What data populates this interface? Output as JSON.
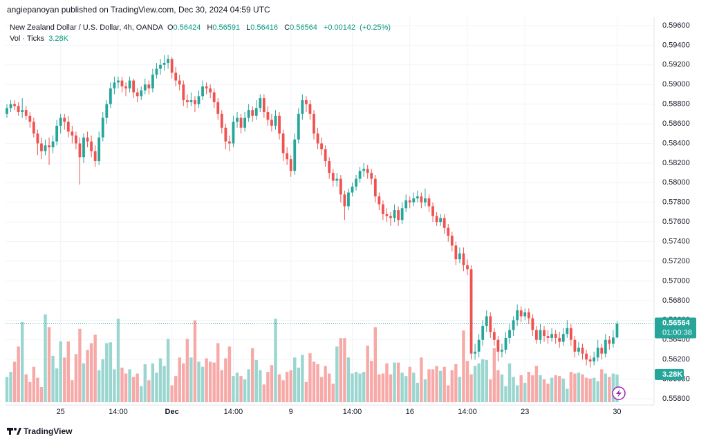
{
  "header": "angiepanoyan published on TradingView.com, Dec 30, 2024 04:59 UTC",
  "footer": "TradingView",
  "chart_data": {
    "type": "candlestick",
    "title": "New Zealand Dollar / U.S. Dollar, 4h, OANDA",
    "legend": {
      "o": "O",
      "h": "H",
      "l": "L",
      "c": "C",
      "change": "+0.00142",
      "change_pct": "(+0.25%)",
      "volume_title": "Vol · Ticks"
    },
    "volume_label": "3.28K",
    "countdown": "01:00:38",
    "up_color": "#26a69a",
    "down_color": "#ef5350",
    "vol_up_color": "#9ad6cf",
    "vol_down_color": "#f7a9a7",
    "grid": true,
    "ylim": [
      0.55765,
      0.59684
    ],
    "yticks": [
      {
        "value": 0.558,
        "label": "0.55800"
      },
      {
        "value": 0.56,
        "label": "0.56000"
      },
      {
        "value": 0.562,
        "label": "0.56200"
      },
      {
        "value": 0.564,
        "label": "0.56400"
      },
      {
        "value": 0.566,
        "label": "0.56600"
      },
      {
        "value": 0.568,
        "label": "0.56800"
      },
      {
        "value": 0.57,
        "label": "0.57000"
      },
      {
        "value": 0.572,
        "label": "0.57200"
      },
      {
        "value": 0.574,
        "label": "0.57400"
      },
      {
        "value": 0.576,
        "label": "0.57600"
      },
      {
        "value": 0.578,
        "label": "0.57800"
      },
      {
        "value": 0.58,
        "label": "0.58000"
      },
      {
        "value": 0.582,
        "label": "0.58200"
      },
      {
        "value": 0.584,
        "label": "0.58400"
      },
      {
        "value": 0.586,
        "label": "0.58600"
      },
      {
        "value": 0.588,
        "label": "0.58800"
      },
      {
        "value": 0.59,
        "label": "0.59000"
      },
      {
        "value": 0.592,
        "label": "0.59200"
      },
      {
        "value": 0.594,
        "label": "0.59400"
      },
      {
        "value": 0.596,
        "label": "0.59600"
      }
    ],
    "vol_ylim": [
      0,
      14
    ],
    "categories": [
      null,
      null,
      null,
      null,
      null,
      null,
      null,
      null,
      null,
      null,
      null,
      null,
      null,
      null,
      "25",
      null,
      null,
      null,
      null,
      null,
      null,
      null,
      null,
      null,
      null,
      null,
      null,
      null,
      null,
      "14:00",
      null,
      null,
      null,
      null,
      null,
      null,
      null,
      null,
      null,
      null,
      null,
      null,
      null,
      "Dec",
      null,
      null,
      null,
      null,
      null,
      null,
      null,
      null,
      null,
      null,
      null,
      null,
      null,
      null,
      null,
      "14:00",
      null,
      null,
      null,
      null,
      null,
      null,
      null,
      null,
      null,
      null,
      null,
      null,
      null,
      null,
      "9",
      null,
      null,
      null,
      null,
      null,
      null,
      null,
      null,
      null,
      null,
      null,
      null,
      null,
      null,
      null,
      "14:00",
      null,
      null,
      null,
      null,
      null,
      null,
      null,
      null,
      null,
      null,
      null,
      null,
      null,
      null,
      "16",
      null,
      null,
      null,
      null,
      null,
      null,
      null,
      null,
      null,
      null,
      null,
      null,
      null,
      null,
      "14:00",
      null,
      null,
      null,
      null,
      null,
      null,
      null,
      null,
      null,
      null,
      null,
      null,
      null,
      null,
      "23",
      null,
      null,
      null,
      null,
      null,
      null,
      null,
      null,
      null,
      null,
      null,
      null,
      null,
      null,
      null,
      null,
      null,
      null,
      null,
      null,
      null,
      null,
      null,
      "30"
    ],
    "ohlc": [
      [
        0.587,
        0.588,
        0.5866,
        0.5876
      ],
      [
        0.5876,
        0.5884,
        0.5872,
        0.588
      ],
      [
        0.588,
        0.5884,
        0.5874,
        0.5878
      ],
      [
        0.5878,
        0.5882,
        0.5868,
        0.5872
      ],
      [
        0.5872,
        0.5886,
        0.5866,
        0.5874
      ],
      [
        0.5874,
        0.5878,
        0.5864,
        0.5868
      ],
      [
        0.5868,
        0.5872,
        0.5856,
        0.5862
      ],
      [
        0.5862,
        0.5866,
        0.5846,
        0.585
      ],
      [
        0.585,
        0.5854,
        0.5828,
        0.584
      ],
      [
        0.584,
        0.5846,
        0.5824,
        0.5832
      ],
      [
        0.5832,
        0.5844,
        0.5828,
        0.5838
      ],
      [
        0.5838,
        0.5846,
        0.5818,
        0.5836
      ],
      [
        0.5836,
        0.5848,
        0.583,
        0.5842
      ],
      [
        0.5842,
        0.5864,
        0.5838,
        0.5858
      ],
      [
        0.5858,
        0.587,
        0.585,
        0.5866
      ],
      [
        0.5866,
        0.587,
        0.5854,
        0.5862
      ],
      [
        0.5862,
        0.5868,
        0.5846,
        0.5852
      ],
      [
        0.5852,
        0.5858,
        0.584,
        0.5848
      ],
      [
        0.5848,
        0.5852,
        0.5834,
        0.584
      ],
      [
        0.584,
        0.5846,
        0.5798,
        0.5826
      ],
      [
        0.5826,
        0.585,
        0.582,
        0.5846
      ],
      [
        0.5846,
        0.5852,
        0.5836,
        0.5842
      ],
      [
        0.5842,
        0.5848,
        0.5826,
        0.5832
      ],
      [
        0.5832,
        0.5838,
        0.5816,
        0.5822
      ],
      [
        0.5822,
        0.5852,
        0.5818,
        0.5846
      ],
      [
        0.5846,
        0.5872,
        0.5842,
        0.5866
      ],
      [
        0.5866,
        0.5884,
        0.586,
        0.588
      ],
      [
        0.588,
        0.5902,
        0.5876,
        0.5896
      ],
      [
        0.5896,
        0.5908,
        0.589,
        0.5902
      ],
      [
        0.5902,
        0.5908,
        0.5896,
        0.5904
      ],
      [
        0.5904,
        0.5908,
        0.5892,
        0.5898
      ],
      [
        0.5898,
        0.5902,
        0.5888,
        0.5896
      ],
      [
        0.5896,
        0.5908,
        0.5892,
        0.5904
      ],
      [
        0.5904,
        0.5906,
        0.5886,
        0.5892
      ],
      [
        0.5892,
        0.5896,
        0.5882,
        0.5888
      ],
      [
        0.5888,
        0.5898,
        0.5884,
        0.5894
      ],
      [
        0.5894,
        0.5906,
        0.589,
        0.59
      ],
      [
        0.59,
        0.5904,
        0.589,
        0.5896
      ],
      [
        0.5896,
        0.5916,
        0.5892,
        0.591
      ],
      [
        0.591,
        0.5922,
        0.5906,
        0.5916
      ],
      [
        0.5916,
        0.5926,
        0.591,
        0.592
      ],
      [
        0.592,
        0.593,
        0.5914,
        0.5922
      ],
      [
        0.5922,
        0.593,
        0.5916,
        0.5926
      ],
      [
        0.5926,
        0.5928,
        0.5906,
        0.5912
      ],
      [
        0.5912,
        0.5918,
        0.5898,
        0.5904
      ],
      [
        0.5904,
        0.591,
        0.5894,
        0.59
      ],
      [
        0.59,
        0.5904,
        0.5878,
        0.5884
      ],
      [
        0.5884,
        0.589,
        0.5876,
        0.5882
      ],
      [
        0.5882,
        0.5892,
        0.5878,
        0.5884
      ],
      [
        0.5884,
        0.5888,
        0.5872,
        0.588
      ],
      [
        0.588,
        0.5894,
        0.5876,
        0.5888
      ],
      [
        0.5888,
        0.5904,
        0.5884,
        0.5898
      ],
      [
        0.5898,
        0.5902,
        0.589,
        0.5896
      ],
      [
        0.5896,
        0.59,
        0.5886,
        0.5892
      ],
      [
        0.5892,
        0.5896,
        0.5876,
        0.5882
      ],
      [
        0.5882,
        0.5886,
        0.5864,
        0.587
      ],
      [
        0.587,
        0.5874,
        0.585,
        0.5856
      ],
      [
        0.5856,
        0.586,
        0.5834,
        0.5842
      ],
      [
        0.5842,
        0.5848,
        0.5832,
        0.584
      ],
      [
        0.584,
        0.5868,
        0.5836,
        0.5862
      ],
      [
        0.5862,
        0.5872,
        0.5856,
        0.5866
      ],
      [
        0.5866,
        0.587,
        0.585,
        0.5856
      ],
      [
        0.5856,
        0.5872,
        0.5852,
        0.5866
      ],
      [
        0.5866,
        0.588,
        0.5862,
        0.5874
      ],
      [
        0.5874,
        0.5878,
        0.5862,
        0.5868
      ],
      [
        0.5868,
        0.5884,
        0.5864,
        0.5876
      ],
      [
        0.5876,
        0.589,
        0.5872,
        0.5886
      ],
      [
        0.5886,
        0.589,
        0.5866,
        0.5872
      ],
      [
        0.5872,
        0.5878,
        0.5858,
        0.5864
      ],
      [
        0.5864,
        0.587,
        0.5852,
        0.5858
      ],
      [
        0.5858,
        0.5874,
        0.5854,
        0.5868
      ],
      [
        0.5868,
        0.5872,
        0.5844,
        0.585
      ],
      [
        0.585,
        0.5854,
        0.5822,
        0.583
      ],
      [
        0.583,
        0.5836,
        0.5818,
        0.5824
      ],
      [
        0.5824,
        0.5828,
        0.5806,
        0.5812
      ],
      [
        0.5812,
        0.585,
        0.5808,
        0.5844
      ],
      [
        0.5844,
        0.5876,
        0.584,
        0.587
      ],
      [
        0.587,
        0.589,
        0.5864,
        0.5884
      ],
      [
        0.5884,
        0.5888,
        0.5872,
        0.588
      ],
      [
        0.588,
        0.5884,
        0.5864,
        0.587
      ],
      [
        0.587,
        0.5874,
        0.5844,
        0.585
      ],
      [
        0.585,
        0.5856,
        0.5834,
        0.584
      ],
      [
        0.584,
        0.5846,
        0.5828,
        0.5834
      ],
      [
        0.5834,
        0.5838,
        0.5816,
        0.5822
      ],
      [
        0.5822,
        0.5826,
        0.5804,
        0.581
      ],
      [
        0.581,
        0.5814,
        0.5796,
        0.5802
      ],
      [
        0.5802,
        0.581,
        0.5796,
        0.5804
      ],
      [
        0.5804,
        0.5808,
        0.578,
        0.5788
      ],
      [
        0.5788,
        0.5792,
        0.5762,
        0.5776
      ],
      [
        0.5776,
        0.5794,
        0.5772,
        0.579
      ],
      [
        0.579,
        0.58,
        0.5786,
        0.5796
      ],
      [
        0.5796,
        0.5808,
        0.5792,
        0.5804
      ],
      [
        0.5804,
        0.5816,
        0.58,
        0.5812
      ],
      [
        0.5812,
        0.582,
        0.5806,
        0.5814
      ],
      [
        0.5814,
        0.5818,
        0.5804,
        0.581
      ],
      [
        0.581,
        0.5814,
        0.5798,
        0.5804
      ],
      [
        0.5804,
        0.5808,
        0.578,
        0.5786
      ],
      [
        0.5786,
        0.579,
        0.5772,
        0.5778
      ],
      [
        0.5778,
        0.5782,
        0.5762,
        0.5768
      ],
      [
        0.5768,
        0.5774,
        0.576,
        0.5766
      ],
      [
        0.5766,
        0.577,
        0.5756,
        0.5764
      ],
      [
        0.5764,
        0.5778,
        0.576,
        0.5772
      ],
      [
        0.5772,
        0.5776,
        0.5756,
        0.5762
      ],
      [
        0.5762,
        0.578,
        0.5758,
        0.5774
      ],
      [
        0.5774,
        0.5788,
        0.577,
        0.5782
      ],
      [
        0.5782,
        0.5786,
        0.5774,
        0.578
      ],
      [
        0.578,
        0.579,
        0.5776,
        0.5784
      ],
      [
        0.5784,
        0.5792,
        0.578,
        0.5786
      ],
      [
        0.5786,
        0.579,
        0.5774,
        0.578
      ],
      [
        0.578,
        0.5794,
        0.5776,
        0.5784
      ],
      [
        0.5784,
        0.5788,
        0.577,
        0.5776
      ],
      [
        0.5776,
        0.578,
        0.576,
        0.5766
      ],
      [
        0.5766,
        0.577,
        0.5756,
        0.576
      ],
      [
        0.576,
        0.5768,
        0.5756,
        0.5764
      ],
      [
        0.5764,
        0.5768,
        0.5748,
        0.5754
      ],
      [
        0.5754,
        0.5758,
        0.574,
        0.5746
      ],
      [
        0.5746,
        0.575,
        0.573,
        0.5736
      ],
      [
        0.5736,
        0.574,
        0.5716,
        0.5722
      ],
      [
        0.5722,
        0.5734,
        0.5718,
        0.5728
      ],
      [
        0.5728,
        0.5734,
        0.571,
        0.5716
      ],
      [
        0.5716,
        0.5722,
        0.5706,
        0.5712
      ],
      [
        0.5712,
        0.5716,
        0.562,
        0.5626
      ],
      [
        0.5626,
        0.5636,
        0.562,
        0.5628
      ],
      [
        0.5628,
        0.5646,
        0.5622,
        0.564
      ],
      [
        0.564,
        0.566,
        0.5634,
        0.5654
      ],
      [
        0.5654,
        0.567,
        0.5648,
        0.5664
      ],
      [
        0.5664,
        0.5668,
        0.5642,
        0.5648
      ],
      [
        0.5648,
        0.5652,
        0.5634,
        0.564
      ],
      [
        0.564,
        0.5644,
        0.5618,
        0.5628
      ],
      [
        0.5628,
        0.5636,
        0.5622,
        0.563
      ],
      [
        0.563,
        0.5648,
        0.5626,
        0.5642
      ],
      [
        0.5642,
        0.5656,
        0.5636,
        0.565
      ],
      [
        0.565,
        0.5664,
        0.5644,
        0.566
      ],
      [
        0.566,
        0.5676,
        0.5654,
        0.567
      ],
      [
        0.567,
        0.5674,
        0.5658,
        0.5664
      ],
      [
        0.5664,
        0.5672,
        0.566,
        0.5668
      ],
      [
        0.5668,
        0.5672,
        0.5656,
        0.5662
      ],
      [
        0.5662,
        0.5666,
        0.5644,
        0.565
      ],
      [
        0.565,
        0.5654,
        0.5636,
        0.564
      ],
      [
        0.564,
        0.5656,
        0.5636,
        0.565
      ],
      [
        0.565,
        0.5654,
        0.5638,
        0.5644
      ],
      [
        0.5644,
        0.565,
        0.5636,
        0.5642
      ],
      [
        0.5642,
        0.5652,
        0.5638,
        0.5646
      ],
      [
        0.5646,
        0.565,
        0.5636,
        0.5642
      ],
      [
        0.5642,
        0.5648,
        0.5632,
        0.5638
      ],
      [
        0.5638,
        0.5652,
        0.5634,
        0.5646
      ],
      [
        0.5646,
        0.566,
        0.5642,
        0.5652
      ],
      [
        0.5652,
        0.5656,
        0.5634,
        0.564
      ],
      [
        0.564,
        0.5644,
        0.5622,
        0.5628
      ],
      [
        0.5628,
        0.5638,
        0.5624,
        0.5632
      ],
      [
        0.5632,
        0.5636,
        0.562,
        0.5626
      ],
      [
        0.5626,
        0.563,
        0.5614,
        0.562
      ],
      [
        0.562,
        0.5624,
        0.5612,
        0.5618
      ],
      [
        0.5618,
        0.5628,
        0.5614,
        0.5622
      ],
      [
        0.5622,
        0.564,
        0.5618,
        0.5632
      ],
      [
        0.5632,
        0.5636,
        0.562,
        0.5626
      ],
      [
        0.5626,
        0.5646,
        0.5622,
        0.564
      ],
      [
        0.564,
        0.5644,
        0.563,
        0.5636
      ],
      [
        0.5636,
        0.565,
        0.5632,
        0.56424
      ],
      [
        0.56424,
        0.56591,
        0.56416,
        0.56564
      ]
    ],
    "volumes": [
      3.0,
      3.6,
      4.8,
      6.6,
      9.5,
      3.3,
      2.4,
      4.2,
      2.9,
      1.8,
      10.4,
      8.9,
      5.5,
      4.0,
      7.2,
      5.3,
      7.2,
      2.6,
      5.7,
      8.7,
      4.6,
      6.2,
      7.0,
      8.0,
      3.8,
      5.1,
      7.0,
      7.1,
      3.9,
      9.9,
      4.1,
      3.4,
      3.9,
      3.0,
      3.4,
      1.9,
      4.5,
      2.6,
      4.6,
      3.5,
      5.2,
      4.3,
      7.5,
      2.0,
      3.1,
      5.3,
      4.6,
      7.5,
      5.3,
      9.7,
      4.8,
      4.2,
      5.2,
      4.8,
      4.7,
      7.0,
      3.8,
      5.2,
      6.6,
      3.1,
      3.5,
      3.1,
      2.7,
      3.9,
      6.4,
      5.0,
      3.8,
      2.1,
      3.6,
      4.4,
      9.9,
      3.3,
      2.6,
      3.6,
      3.8,
      5.3,
      4.1,
      5.6,
      2.4,
      5.8,
      4.8,
      4.5,
      3.0,
      4.3,
      3.4,
      2.2,
      6.6,
      7.6,
      7.6,
      5.3,
      3.4,
      3.6,
      3.4,
      3.6,
      6.7,
      4.9,
      8.9,
      3.3,
      3.4,
      4.6,
      3.3,
      4.7,
      4.7,
      3.5,
      3.1,
      4.2,
      3.5,
      2.3,
      5.3,
      2.7,
      3.9,
      3.9,
      4.3,
      3.7,
      4.2,
      2.0,
      3.8,
      4.5,
      3.0,
      8.5,
      4.9,
      3.3,
      4.3,
      4.6,
      5.1,
      5.0,
      2.7,
      6.4,
      3.8,
      3.3,
      1.9,
      4.6,
      3.0,
      2.0,
      3.2,
      2.3,
      3.6,
      3.2,
      4.3,
      3.2,
      2.7,
      2.2,
      2.9,
      3.2,
      3.1,
      2.8,
      1.6,
      3.6,
      3.4,
      3.5,
      3.3,
      2.9,
      2.8,
      2.9,
      2.5,
      3.9,
      3.4,
      3.0,
      3.4,
      3.28
    ]
  }
}
